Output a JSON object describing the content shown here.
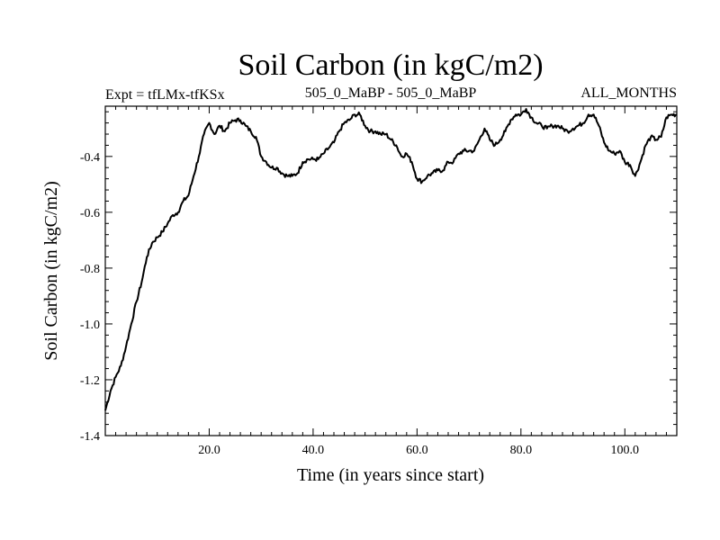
{
  "chart_data": {
    "type": "line",
    "title": "Soil Carbon (in kgC/m2)",
    "subtitle_left": "Expt = tfLMx-tfKSx",
    "subtitle_center": "505_0_MaBP - 505_0_MaBP",
    "subtitle_right": "ALL_MONTHS",
    "xlabel": "Time (in years since start)",
    "ylabel": "Soil Carbon (in kgC/m2)",
    "xlim": [
      0,
      110
    ],
    "ylim": [
      -1.4,
      -0.22
    ],
    "x_ticks": [
      20,
      40,
      60,
      80,
      100
    ],
    "x_tick_labels": [
      "20.0",
      "40.0",
      "60.0",
      "80.0",
      "100.0"
    ],
    "y_ticks": [
      -1.4,
      -1.2,
      -1.0,
      -0.8,
      -0.6,
      -0.4
    ],
    "y_tick_labels": [
      "-1.4",
      "-1.2",
      "-1.0",
      "-0.8",
      "-0.6",
      "-0.4"
    ],
    "series": [
      {
        "name": "Soil Carbon",
        "color": "#000000",
        "points": [
          [
            0,
            -1.31
          ],
          [
            1,
            -1.24
          ],
          [
            2,
            -1.19
          ],
          [
            3,
            -1.15
          ],
          [
            4,
            -1.08
          ],
          [
            5,
            -1.0
          ],
          [
            6,
            -0.92
          ],
          [
            7,
            -0.85
          ],
          [
            8,
            -0.76
          ],
          [
            9,
            -0.71
          ],
          [
            10,
            -0.69
          ],
          [
            11,
            -0.67
          ],
          [
            12,
            -0.64
          ],
          [
            13,
            -0.61
          ],
          [
            14,
            -0.6
          ],
          [
            15,
            -0.56
          ],
          [
            16,
            -0.54
          ],
          [
            17,
            -0.47
          ],
          [
            18,
            -0.4
          ],
          [
            19,
            -0.32
          ],
          [
            20,
            -0.28
          ],
          [
            21,
            -0.32
          ],
          [
            22,
            -0.29
          ],
          [
            23,
            -0.31
          ],
          [
            24,
            -0.28
          ],
          [
            25,
            -0.27
          ],
          [
            26,
            -0.27
          ],
          [
            27,
            -0.29
          ],
          [
            28,
            -0.31
          ],
          [
            29,
            -0.33
          ],
          [
            30,
            -0.4
          ],
          [
            31,
            -0.42
          ],
          [
            32,
            -0.44
          ],
          [
            33,
            -0.44
          ],
          [
            34,
            -0.46
          ],
          [
            35,
            -0.47
          ],
          [
            36,
            -0.47
          ],
          [
            37,
            -0.46
          ],
          [
            38,
            -0.42
          ],
          [
            39,
            -0.41
          ],
          [
            40,
            -0.41
          ],
          [
            41,
            -0.41
          ],
          [
            42,
            -0.39
          ],
          [
            43,
            -0.37
          ],
          [
            44,
            -0.35
          ],
          [
            45,
            -0.31
          ],
          [
            46,
            -0.28
          ],
          [
            47,
            -0.27
          ],
          [
            48,
            -0.25
          ],
          [
            49,
            -0.25
          ],
          [
            50,
            -0.29
          ],
          [
            51,
            -0.31
          ],
          [
            52,
            -0.31
          ],
          [
            53,
            -0.32
          ],
          [
            54,
            -0.32
          ],
          [
            55,
            -0.34
          ],
          [
            56,
            -0.36
          ],
          [
            57,
            -0.4
          ],
          [
            58,
            -0.39
          ],
          [
            59,
            -0.42
          ],
          [
            60,
            -0.48
          ],
          [
            61,
            -0.49
          ],
          [
            62,
            -0.47
          ],
          [
            63,
            -0.46
          ],
          [
            64,
            -0.45
          ],
          [
            65,
            -0.45
          ],
          [
            66,
            -0.42
          ],
          [
            67,
            -0.42
          ],
          [
            68,
            -0.39
          ],
          [
            69,
            -0.38
          ],
          [
            70,
            -0.38
          ],
          [
            71,
            -0.38
          ],
          [
            72,
            -0.34
          ],
          [
            73,
            -0.3
          ],
          [
            74,
            -0.34
          ],
          [
            75,
            -0.36
          ],
          [
            76,
            -0.34
          ],
          [
            77,
            -0.31
          ],
          [
            78,
            -0.27
          ],
          [
            79,
            -0.25
          ],
          [
            80,
            -0.25
          ],
          [
            81,
            -0.23
          ],
          [
            82,
            -0.26
          ],
          [
            83,
            -0.28
          ],
          [
            84,
            -0.29
          ],
          [
            85,
            -0.3
          ],
          [
            86,
            -0.29
          ],
          [
            87,
            -0.29
          ],
          [
            88,
            -0.3
          ],
          [
            89,
            -0.31
          ],
          [
            90,
            -0.3
          ],
          [
            91,
            -0.29
          ],
          [
            92,
            -0.28
          ],
          [
            93,
            -0.25
          ],
          [
            94,
            -0.25
          ],
          [
            95,
            -0.29
          ],
          [
            96,
            -0.35
          ],
          [
            97,
            -0.38
          ],
          [
            98,
            -0.39
          ],
          [
            99,
            -0.38
          ],
          [
            100,
            -0.42
          ],
          [
            101,
            -0.43
          ],
          [
            102,
            -0.47
          ],
          [
            103,
            -0.42
          ],
          [
            104,
            -0.36
          ],
          [
            105,
            -0.33
          ],
          [
            106,
            -0.34
          ],
          [
            107,
            -0.33
          ],
          [
            108,
            -0.26
          ],
          [
            109,
            -0.25
          ],
          [
            110,
            -0.25
          ]
        ]
      }
    ]
  }
}
